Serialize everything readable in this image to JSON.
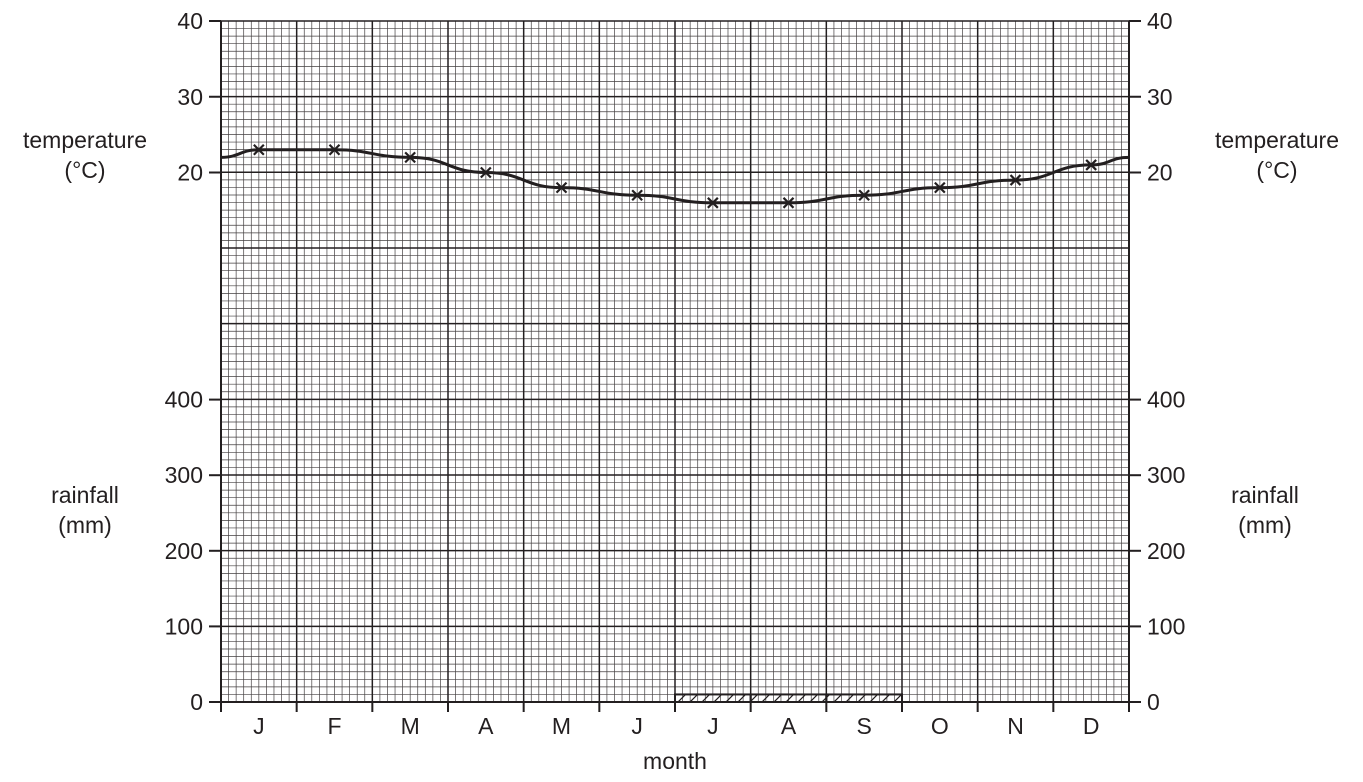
{
  "chart_data": {
    "type": "line",
    "title": "",
    "xlabel": "month",
    "categories": [
      "J",
      "F",
      "M",
      "A",
      "M",
      "J",
      "J",
      "A",
      "S",
      "O",
      "N",
      "D"
    ],
    "temperature": {
      "axis_label_line1": "temperature",
      "axis_label_line2": "(°C)",
      "ticks": [
        "40",
        "30",
        "20"
      ],
      "ylim": [
        0,
        40
      ],
      "values": [
        23,
        23,
        22,
        20,
        18,
        17,
        16,
        16,
        17,
        18,
        19,
        21
      ],
      "marker": "x"
    },
    "rainfall": {
      "axis_label_line1": "rainfall",
      "axis_label_line2": "(mm)",
      "ticks": [
        "400",
        "300",
        "200",
        "100",
        "0"
      ],
      "ylim": [
        0,
        400
      ],
      "values": [
        null,
        null,
        null,
        null,
        null,
        null,
        10,
        10,
        10,
        null,
        null,
        null
      ],
      "bar_style": "hatched"
    },
    "grid": true
  },
  "colors": {
    "ink": "#231f20",
    "grid": "#231f20",
    "background": "#ffffff"
  }
}
